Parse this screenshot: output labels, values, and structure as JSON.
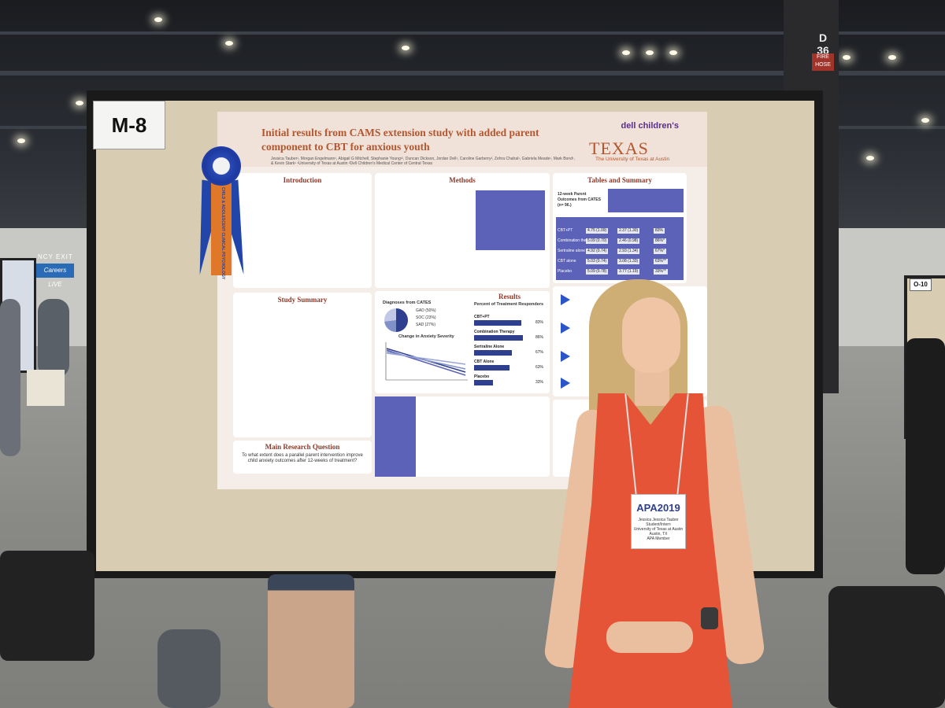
{
  "scene": {
    "board_label": "M-8",
    "pillar_number": "D\n36",
    "fire_hose": "FIRE HOSE",
    "neighbor_board_label": "O-10",
    "careers_sign": "Careers LIVE",
    "exit_sign": "NCY EXIT"
  },
  "poster": {
    "title": "Initial results from CAMS extension study with added parent component to CBT for anxious youth",
    "authors": "Jessica Tauber¹, Morgan Engelmann¹, Abigail G Mitchell, Stephanie Young¹², Duncan Dickson, Jordan Dell¹, Caroline Garberry², Zehra Chahal¹, Gabriela Meade¹, Mark Bond¹, & Kevin Stark¹  ¹University of Texas at Austin  ²Dell Children's Medical Center of Central Texas",
    "logo_dell": "dell children's",
    "logo_texas": "TEXAS",
    "logo_ut": "The University of Texas at Austin",
    "sections": {
      "introduction": "Introduction",
      "study_summary": "Study Summary",
      "main_question": "Main Research Question",
      "methods": "Methods",
      "results": "Results",
      "tables": "Tables and Summary"
    },
    "main_question_text": "To what extent does a parallel parent intervention improve child anxiety outcomes after 12-weeks of treatment?",
    "results": {
      "diagnoses_title": "Diagnoses from CATES",
      "diagnoses": [
        "GAD (50%)",
        "SOC (23%)",
        "SAD (27%)"
      ],
      "change_title": "Change in Anxiety Severity",
      "responders_title": "Percent of Treatment Responders",
      "bars": [
        {
          "label": "CBT+PT",
          "value": 83,
          "text": "83%"
        },
        {
          "label": "Combination Therapy",
          "value": 86,
          "text": "86%"
        },
        {
          "label": "Sertraline Alone",
          "value": 67,
          "text": "67%"
        },
        {
          "label": "CBT Alone",
          "value": 63,
          "text": "63%"
        },
        {
          "label": "Placebo",
          "value": 33,
          "text": "33%"
        }
      ]
    },
    "tables": {
      "parent_outcomes_label": "12-week Parent Outcomes from CATES (n= 96.)",
      "intervention_rows": [
        {
          "arm": "CBT+PT",
          "a": "4.75 (1.09)",
          "b": "2.37 (1.30)",
          "c": "83%"
        },
        {
          "arm": "Combination therapy",
          "a": "5.09 (0.70)",
          "b": "2.46 (0.98)",
          "c": "86%*"
        },
        {
          "arm": "Sertraline alone",
          "a": "4.92 (0.74)",
          "b": "2.93 (1.34)",
          "c": "67%*"
        },
        {
          "arm": "CBT alone",
          "a": "5.03 (0.74)",
          "b": "3.08 (1.33)",
          "c": "63%**"
        },
        {
          "arm": "Placebo",
          "a": "5.09 (0.78)",
          "b": "3.77 (1.19)",
          "c": "33%**"
        }
      ]
    }
  },
  "ribbon": {
    "text": "CHILD & ADOLESCENT CLINICAL PSYCHOLOGY"
  },
  "badge": {
    "event": "APA2019",
    "name": "Jessica Jessica Tauber",
    "role": "Student/Intern",
    "affiliation": "University of Texas at Austin",
    "city": "Austin, TX",
    "member": "APA Member"
  },
  "colors": {
    "poster_accent": "#b4572f",
    "table_blue": "#5b62b8",
    "bar_navy": "#2d3f8e",
    "dress": "#e65437",
    "ribbon_blue": "#2145a8",
    "ribbon_orange": "#e0782a",
    "board": "#d8ccb2"
  }
}
